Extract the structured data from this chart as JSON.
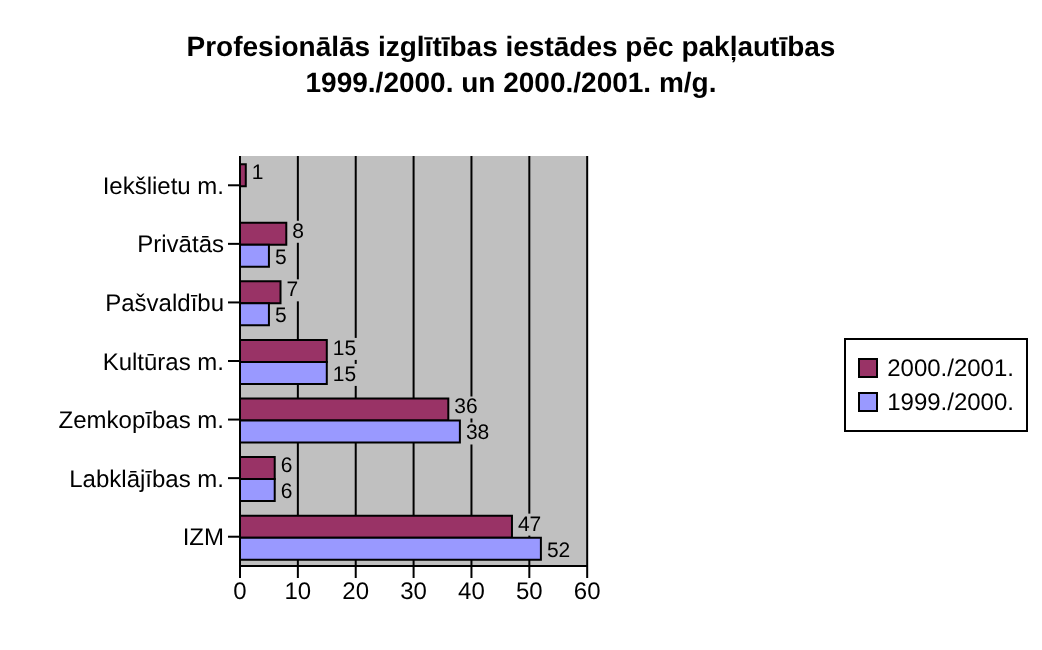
{
  "chart_data": {
    "type": "bar",
    "orientation": "horizontal",
    "title": "Profesionālās izglītības iestādes pēc pakļautības\n1999./2000. un 2000./2001. m/g.",
    "categories": [
      "Iekšlietu m.",
      "Privātās",
      "Pašvaldību",
      "Kultūras m.",
      "Zemkopības m.",
      "Labklājības m.",
      "IZM"
    ],
    "series": [
      {
        "name": "2000./2001.",
        "color": "#993366",
        "values": [
          1,
          8,
          7,
          15,
          36,
          6,
          47
        ]
      },
      {
        "name": "1999./2000.",
        "color": "#9999ff",
        "values": [
          null,
          5,
          5,
          15,
          38,
          6,
          52
        ]
      }
    ],
    "xlim": [
      0,
      60
    ],
    "xticks": [
      0,
      10,
      20,
      30,
      40,
      50,
      60
    ],
    "grid": "x",
    "legend": "right",
    "data_labels": true
  }
}
